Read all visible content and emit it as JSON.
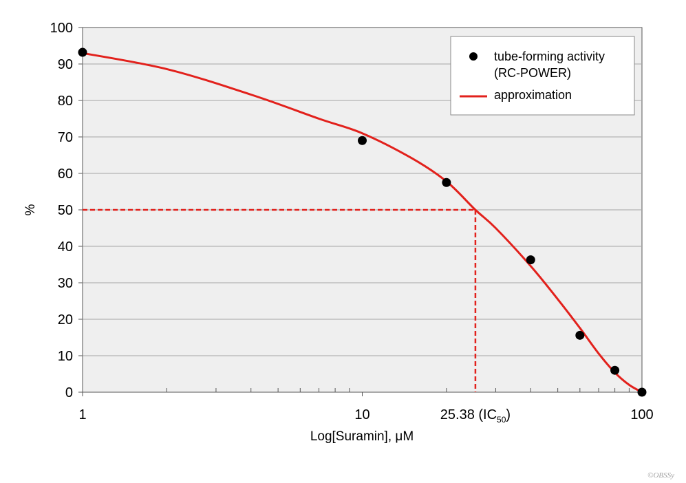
{
  "chart_data": {
    "type": "scatter",
    "x_scale": "log",
    "xlabel": "Log[Suramin], μM",
    "ylabel": "%",
    "xlim": [
      1,
      100
    ],
    "ylim": [
      0,
      100
    ],
    "y_ticks": [
      0,
      10,
      20,
      30,
      40,
      50,
      60,
      70,
      80,
      90,
      100
    ],
    "x_tick_labels": [
      {
        "value": 1,
        "label": "1"
      },
      {
        "value": 10,
        "label": "10"
      },
      {
        "value": 100,
        "label": "100"
      }
    ],
    "grid": "horizontal",
    "legend_position": "top-right",
    "series": [
      {
        "name": "tube-forming activity",
        "name_line2": "(RC-POWER)",
        "kind": "scatter",
        "color": "#000000",
        "points": [
          {
            "x": 1,
            "y": 93.2
          },
          {
            "x": 10,
            "y": 69.0
          },
          {
            "x": 20,
            "y": 57.5
          },
          {
            "x": 40,
            "y": 36.3
          },
          {
            "x": 60,
            "y": 15.6
          },
          {
            "x": 80,
            "y": 6.0
          },
          {
            "x": 100,
            "y": 0.0
          }
        ]
      },
      {
        "name": "approximation",
        "kind": "line",
        "color": "#e2211c",
        "points": [
          {
            "x": 1,
            "y": 93.0
          },
          {
            "x": 2,
            "y": 88.6
          },
          {
            "x": 4,
            "y": 81.6
          },
          {
            "x": 7,
            "y": 75.0
          },
          {
            "x": 10,
            "y": 71.0
          },
          {
            "x": 15,
            "y": 64.2
          },
          {
            "x": 20,
            "y": 57.8
          },
          {
            "x": 25.38,
            "y": 50.0
          },
          {
            "x": 30,
            "y": 45.0
          },
          {
            "x": 40,
            "y": 34.6
          },
          {
            "x": 50,
            "y": 25.5
          },
          {
            "x": 60,
            "y": 17.6
          },
          {
            "x": 70,
            "y": 10.6
          },
          {
            "x": 80,
            "y": 5.4
          },
          {
            "x": 90,
            "y": 2.0
          },
          {
            "x": 100,
            "y": 0.0
          }
        ]
      }
    ],
    "ic50": {
      "x": 25.38,
      "y": 50,
      "label_main": "25.38 (IC",
      "label_sub": "50",
      "label_end": ")"
    }
  },
  "colors": {
    "plot_background": "#efefef",
    "grid": "#a6a6a6",
    "accent_red": "#e2211c",
    "axis": "#555555"
  },
  "watermark": "©OBSSy"
}
